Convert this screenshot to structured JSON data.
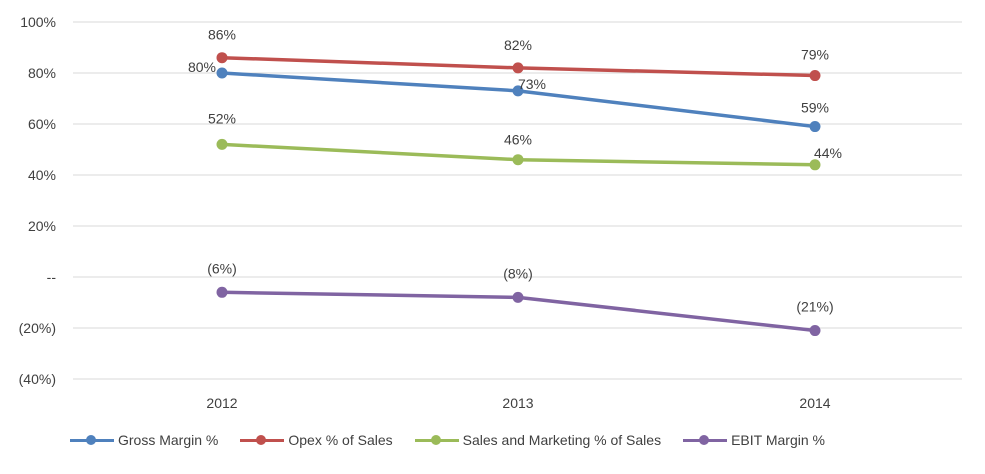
{
  "chart_data": {
    "type": "line",
    "categories": [
      "2012",
      "2013",
      "2014"
    ],
    "ylim": [
      -40,
      100
    ],
    "yticks": [
      100,
      80,
      60,
      40,
      20,
      0,
      -20,
      -40
    ],
    "ytick_labels": [
      "100%",
      "80%",
      "60%",
      "40%",
      "20%",
      "--",
      "(20%)",
      "(40%)"
    ],
    "grid": true,
    "legend_position": "bottom",
    "series": [
      {
        "name": "Gross Margin %",
        "color": "#4F81BD",
        "values": [
          80,
          73,
          59
        ],
        "labels": [
          "80%",
          "73%",
          "59%"
        ]
      },
      {
        "name": "Opex % of Sales",
        "color": "#C0504D",
        "values": [
          86,
          82,
          79
        ],
        "labels": [
          "86%",
          "82%",
          "79%"
        ]
      },
      {
        "name": "Sales and Marketing % of Sales",
        "color": "#9BBB59",
        "values": [
          52,
          46,
          44
        ],
        "labels": [
          "52%",
          "46%",
          "44%"
        ]
      },
      {
        "name": "EBIT Margin %",
        "color": "#8064A2",
        "values": [
          -6,
          -8,
          -21
        ],
        "labels": [
          "(6%)",
          "(8%)",
          "(21%)"
        ]
      }
    ]
  }
}
